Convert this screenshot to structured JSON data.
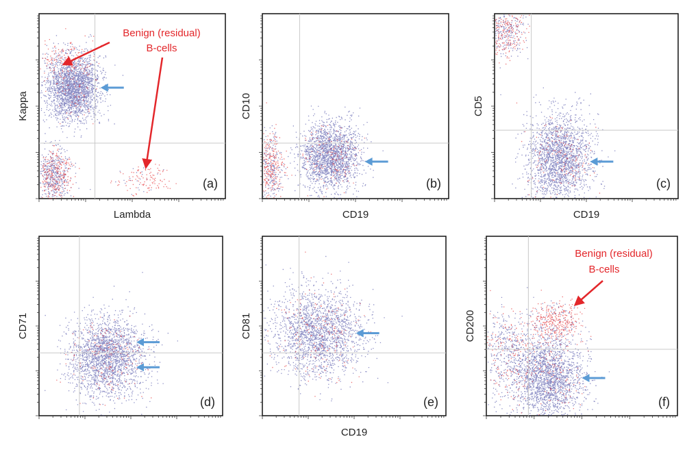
{
  "colors": {
    "population_primary": "#2b2f96",
    "population_secondary": "#e3262a",
    "callout_arrow": "#5b9bd5",
    "annotation": "#e3262a",
    "gate_line": "#c8c8c8"
  },
  "chart_data": [
    {
      "type": "scatter",
      "panel_label": "(a)",
      "xlabel": "Lambda",
      "ylabel": "Kappa",
      "gate": {
        "x": 0.3,
        "y": 0.3
      },
      "clusters": [
        {
          "name": "",
          "cx": 0.18,
          "cy": 0.6,
          "sx": 0.07,
          "sy": 0.085,
          "n": 2400,
          "red_fraction": 0.03
        },
        {
          "name": "",
          "cx": 0.08,
          "cy": 0.12,
          "sx": 0.045,
          "sy": 0.075,
          "n": 700,
          "red_fraction": 0.35
        },
        {
          "name": "",
          "cx": 0.13,
          "cy": 0.75,
          "sx": 0.08,
          "sy": 0.06,
          "n": 160,
          "red_fraction": 0.75
        },
        {
          "name": "",
          "cx": 0.55,
          "cy": 0.1,
          "sx": 0.07,
          "sy": 0.04,
          "n": 130,
          "red_fraction": 0.85
        }
      ],
      "arrows": [
        {
          "x": 0.33,
          "y": 0.6
        }
      ],
      "annotation": {
        "lines": [
          "Benign (residual)",
          "B-cells"
        ]
      }
    },
    {
      "type": "scatter",
      "panel_label": "(b)",
      "xlabel": "CD19",
      "ylabel": "CD10",
      "gate": {
        "x": 0.2,
        "y": 0.3
      },
      "clusters": [
        {
          "name": "",
          "cx": 0.36,
          "cy": 0.23,
          "sx": 0.08,
          "sy": 0.09,
          "n": 2600,
          "red_fraction": 0.06
        },
        {
          "name": "",
          "cx": 0.04,
          "cy": 0.18,
          "sx": 0.035,
          "sy": 0.09,
          "n": 500,
          "red_fraction": 0.55
        }
      ],
      "arrows": [
        {
          "x": 0.55,
          "y": 0.2
        }
      ]
    },
    {
      "type": "scatter",
      "panel_label": "(c)",
      "xlabel": "CD19",
      "ylabel": "CD5",
      "gate": {
        "x": 0.2,
        "y": 0.37
      },
      "clusters": [
        {
          "name": "",
          "cx": 0.35,
          "cy": 0.22,
          "sx": 0.085,
          "sy": 0.12,
          "n": 2600,
          "red_fraction": 0.06
        },
        {
          "name": "",
          "cx": 0.06,
          "cy": 0.9,
          "sx": 0.05,
          "sy": 0.07,
          "n": 450,
          "red_fraction": 0.45
        }
      ],
      "arrows": [
        {
          "x": 0.52,
          "y": 0.2
        }
      ]
    },
    {
      "type": "scatter",
      "panel_label": "(d)",
      "xlabel": "",
      "ylabel": "CD71",
      "gate": {
        "x": 0.22,
        "y": 0.35
      },
      "clusters": [
        {
          "name": "",
          "cx": 0.37,
          "cy": 0.33,
          "sx": 0.1,
          "sy": 0.11,
          "n": 2800,
          "red_fraction": 0.07
        }
      ],
      "arrows": [
        {
          "x": 0.53,
          "y": 0.41
        },
        {
          "x": 0.53,
          "y": 0.27
        }
      ]
    },
    {
      "type": "scatter",
      "panel_label": "(e)",
      "xlabel": "CD19",
      "ylabel": "CD81",
      "gate": {
        "x": 0.2,
        "y": 0.35
      },
      "clusters": [
        {
          "name": "",
          "cx": 0.3,
          "cy": 0.46,
          "sx": 0.12,
          "sy": 0.12,
          "n": 3000,
          "red_fraction": 0.08
        }
      ],
      "arrows": [
        {
          "x": 0.51,
          "y": 0.46
        }
      ]
    },
    {
      "type": "scatter",
      "panel_label": "(f)",
      "xlabel": "",
      "ylabel": "CD200",
      "gate": {
        "x": 0.22,
        "y": 0.37
      },
      "clusters": [
        {
          "name": "",
          "cx": 0.32,
          "cy": 0.21,
          "sx": 0.09,
          "sy": 0.11,
          "n": 2400,
          "red_fraction": 0.05
        },
        {
          "name": "",
          "cx": 0.36,
          "cy": 0.52,
          "sx": 0.06,
          "sy": 0.06,
          "n": 420,
          "red_fraction": 0.7
        },
        {
          "name": "",
          "cx": 0.12,
          "cy": 0.36,
          "sx": 0.09,
          "sy": 0.12,
          "n": 600,
          "red_fraction": 0.3
        }
      ],
      "arrows": [
        {
          "x": 0.5,
          "y": 0.21
        }
      ],
      "annotation": {
        "lines": [
          "Benign (residual)",
          "B-cells"
        ]
      }
    }
  ]
}
